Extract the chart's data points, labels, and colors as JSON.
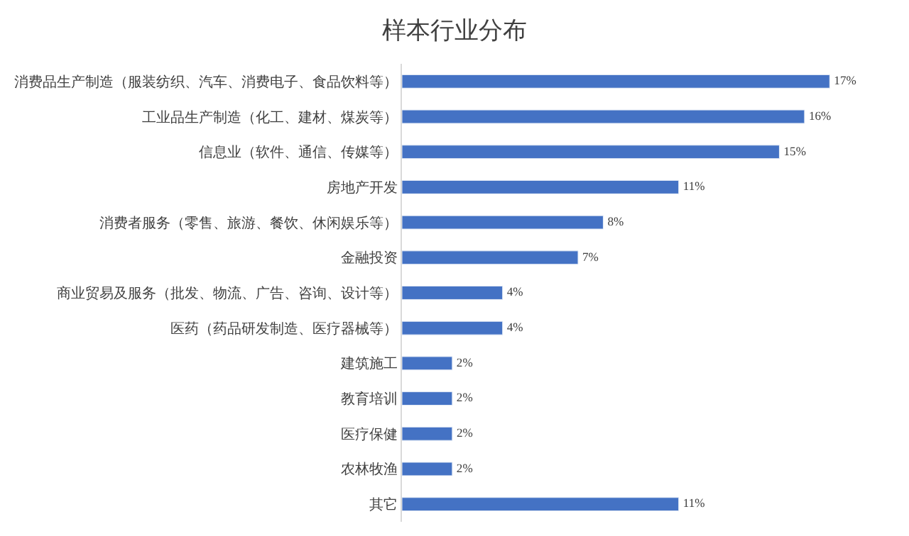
{
  "chart_data": {
    "type": "bar",
    "orientation": "horizontal",
    "title": "样本行业分布",
    "categories": [
      "消费品生产制造（服装纺织、汽车、消费电子、食品饮料等）",
      "工业品生产制造（化工、建材、煤炭等）",
      "信息业（软件、通信、传媒等）",
      "房地产开发",
      "消费者服务（零售、旅游、餐饮、休闲娱乐等）",
      "金融投资",
      "商业贸易及服务（批发、物流、广告、咨询、设计等）",
      "医药（药品研发制造、医疗器械等）",
      "建筑施工",
      "教育培训",
      "医疗保健",
      "农林牧渔",
      "其它"
    ],
    "values": [
      17,
      16,
      15,
      11,
      8,
      7,
      4,
      4,
      2,
      2,
      2,
      2,
      11
    ],
    "value_labels": [
      "17%",
      "16%",
      "15%",
      "11%",
      "8%",
      "7%",
      "4%",
      "4%",
      "2%",
      "2%",
      "2%",
      "2%",
      "11%"
    ],
    "color": "#4472c4",
    "tick_labels": "y"
  }
}
